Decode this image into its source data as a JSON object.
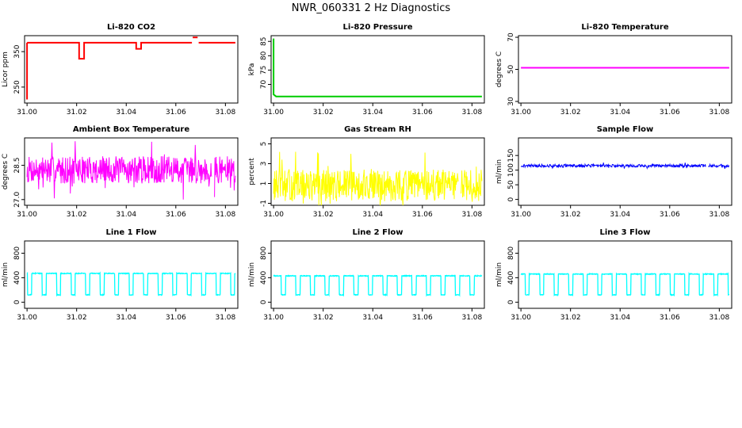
{
  "title": "NWR_060331  2 Hz Diagnostics",
  "chart_data": [
    {
      "type": "line",
      "id": "co2",
      "title": "Li-820 CO2",
      "ylabel": "Licor ppm",
      "color": "#ff0000",
      "xlim": [
        30.999,
        31.085
      ],
      "xticks": [
        31.0,
        31.02,
        31.04,
        31.06,
        31.08
      ],
      "ylim": [
        205,
        395
      ],
      "yticks": [
        250,
        350
      ],
      "segments": [
        [
          [
            31.0,
            215
          ],
          [
            31.0,
            375
          ]
        ],
        [
          [
            31.0,
            375
          ],
          [
            31.021,
            375
          ],
          [
            31.021,
            330
          ],
          [
            31.023,
            330
          ],
          [
            31.023,
            375
          ],
          [
            31.044,
            375
          ],
          [
            31.044,
            358
          ],
          [
            31.046,
            358
          ],
          [
            31.046,
            375
          ],
          [
            31.0665,
            375
          ]
        ],
        [
          [
            31.0668,
            390
          ],
          [
            31.0688,
            390
          ]
        ],
        [
          [
            31.0692,
            375
          ],
          [
            31.084,
            375
          ]
        ]
      ]
    },
    {
      "type": "line",
      "id": "pressure",
      "title": "Li-820 Pressure",
      "ylabel": "kPa",
      "color": "#00cc00",
      "xlim": [
        30.999,
        31.085
      ],
      "xticks": [
        31.0,
        31.02,
        31.04,
        31.06,
        31.08
      ],
      "ylim": [
        63.5,
        87
      ],
      "yticks": [
        70,
        75,
        80,
        85
      ],
      "segments": [
        [
          [
            31.0,
            86
          ],
          [
            31.0,
            66.5
          ],
          [
            31.001,
            65.8
          ],
          [
            31.084,
            65.8
          ]
        ]
      ]
    },
    {
      "type": "line",
      "id": "temperature",
      "title": "Li-820 Temperature",
      "ylabel": "degrees C",
      "color": "#ff00ff",
      "xlim": [
        30.999,
        31.085
      ],
      "xticks": [
        31.0,
        31.02,
        31.04,
        31.06,
        31.08
      ],
      "ylim": [
        29,
        71
      ],
      "yticks": [
        30,
        50,
        70
      ],
      "segments": [
        [
          [
            31.0,
            51
          ],
          [
            31.084,
            51
          ]
        ]
      ]
    },
    {
      "type": "noisy",
      "id": "boxtemp",
      "title": "Ambient Box Temperature",
      "ylabel": "degrees C",
      "color": "#ff00ff",
      "xlim": [
        30.999,
        31.085
      ],
      "xticks": [
        31.0,
        31.02,
        31.04,
        31.06,
        31.08
      ],
      "ylim": [
        26.75,
        29.7
      ],
      "yticks": [
        27.0,
        28.5
      ],
      "center": 28.3,
      "amp": 0.6,
      "seed": 7,
      "gaps": [
        [
          31.0745,
          31.0755
        ]
      ]
    },
    {
      "type": "noisy",
      "id": "rh",
      "title": "Gas Stream RH",
      "ylabel": "percent",
      "color": "#ffff00",
      "xlim": [
        30.999,
        31.085
      ],
      "xticks": [
        31.0,
        31.02,
        31.04,
        31.06,
        31.08
      ],
      "ylim": [
        -1.2,
        5.6
      ],
      "yticks": [
        -1,
        1,
        3,
        5
      ],
      "center": 0.8,
      "amp": 1.6,
      "seed": 13,
      "gaps": [
        [
          31.0745,
          31.0755
        ]
      ]
    },
    {
      "type": "noisy",
      "id": "sampleflow",
      "title": "Sample Flow",
      "ylabel": "ml/min",
      "color": "#0000ff",
      "xlim": [
        30.999,
        31.085
      ],
      "xticks": [
        31.0,
        31.02,
        31.04,
        31.06,
        31.08
      ],
      "ylim": [
        -20,
        210
      ],
      "yticks": [
        0,
        50,
        100,
        150
      ],
      "center": 115,
      "amp": 5,
      "seed": 21,
      "gaps": [
        [
          31.0745,
          31.0755
        ]
      ]
    },
    {
      "type": "square",
      "id": "line1",
      "title": "Line 1 Flow",
      "ylabel": "ml/min",
      "color": "#00ffff",
      "xlim": [
        30.999,
        31.085
      ],
      "xticks": [
        31.0,
        31.02,
        31.04,
        31.06,
        31.08
      ],
      "ylim": [
        -100,
        1000
      ],
      "yticks": [
        0,
        400,
        800
      ],
      "high": 470,
      "low": 120,
      "x0": 31.0,
      "x1": 31.084,
      "period": 0.00585,
      "duty": 0.72,
      "phase": 0.004,
      "noise": 12
    },
    {
      "type": "square",
      "id": "line2",
      "title": "Line 2 Flow",
      "ylabel": "ml/min",
      "color": "#00ffff",
      "xlim": [
        30.999,
        31.085
      ],
      "xticks": [
        31.0,
        31.02,
        31.04,
        31.06,
        31.08
      ],
      "ylim": [
        -100,
        1000
      ],
      "yticks": [
        0,
        400,
        800
      ],
      "high": 430,
      "low": 120,
      "x0": 31.0,
      "x1": 31.084,
      "period": 0.00585,
      "duty": 0.7,
      "phase": 0.001,
      "noise": 12
    },
    {
      "type": "square",
      "id": "line3",
      "title": "Line 3 Flow",
      "ylabel": "ml/min",
      "color": "#00ffff",
      "xlim": [
        30.999,
        31.085
      ],
      "xticks": [
        31.0,
        31.02,
        31.04,
        31.06,
        31.08
      ],
      "ylim": [
        -100,
        1000
      ],
      "yticks": [
        0,
        400,
        800
      ],
      "high": 460,
      "low": 120,
      "x0": 31.0,
      "x1": 31.084,
      "period": 0.00585,
      "duty": 0.72,
      "phase": 0.0025,
      "noise": 12
    }
  ]
}
